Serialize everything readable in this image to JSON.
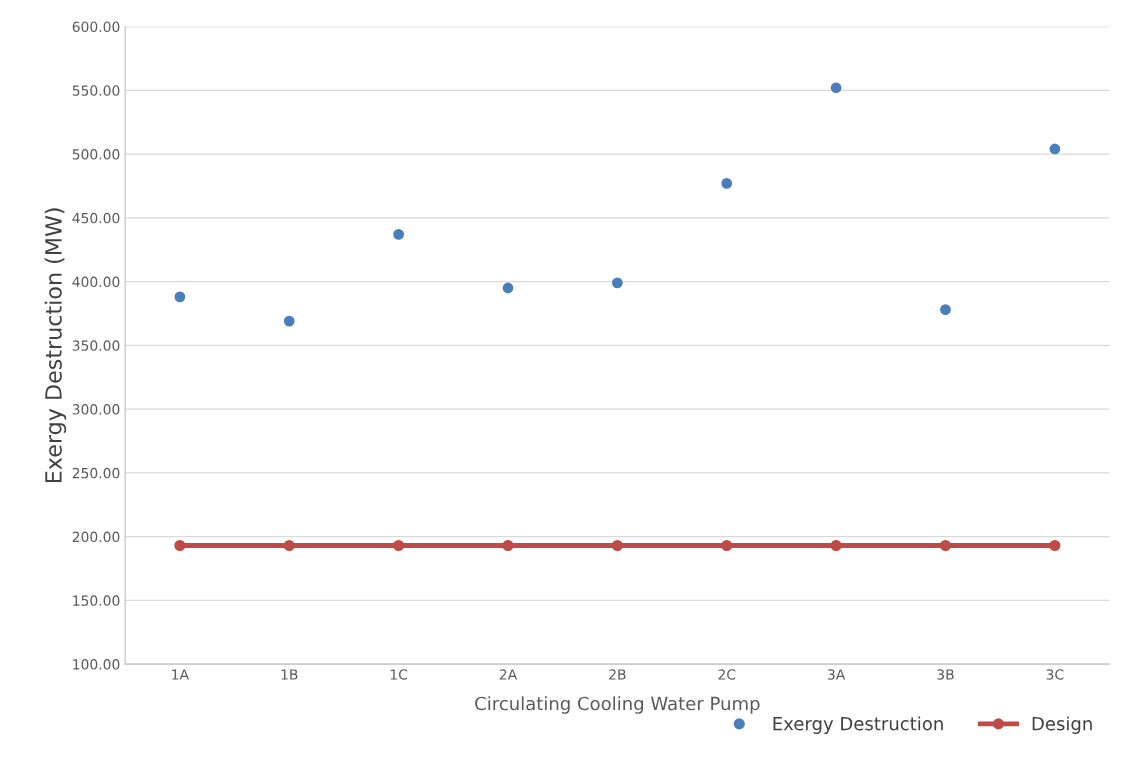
{
  "chart_data": {
    "type": "scatter",
    "xlabel": "Circulating Cooling Water Pump",
    "ylabel": "Exergy Destruction (MW)",
    "categories": [
      "1A",
      "1B",
      "1C",
      "2A",
      "2B",
      "2C",
      "3A",
      "3B",
      "3C"
    ],
    "series": [
      {
        "name": "Exergy Destruction",
        "color": "#4a7ebb",
        "marker": "circle",
        "values": [
          388,
          369,
          437,
          395,
          399,
          477,
          552,
          378,
          504
        ]
      },
      {
        "name": "Design",
        "type": "line",
        "color": "#be4b48",
        "marker": "circle",
        "line_style": "solid",
        "values": [
          193,
          193,
          193,
          193,
          193,
          193,
          193,
          193,
          193
        ]
      }
    ],
    "ylim": [
      100,
      600
    ],
    "yticks": [
      {
        "value": 100,
        "label": "100.00"
      },
      {
        "value": 150,
        "label": "150.00"
      },
      {
        "value": 200,
        "label": "200.00"
      },
      {
        "value": 250,
        "label": "250.00"
      },
      {
        "value": 300,
        "label": "300.00"
      },
      {
        "value": 350,
        "label": "350.00"
      },
      {
        "value": 400,
        "label": "400.00"
      },
      {
        "value": 450,
        "label": "450.00"
      },
      {
        "value": 500,
        "label": "500.00"
      },
      {
        "value": 550,
        "label": "550.00"
      },
      {
        "value": 600,
        "label": "600.00"
      }
    ],
    "grid": "y",
    "legend": "bottom right"
  }
}
